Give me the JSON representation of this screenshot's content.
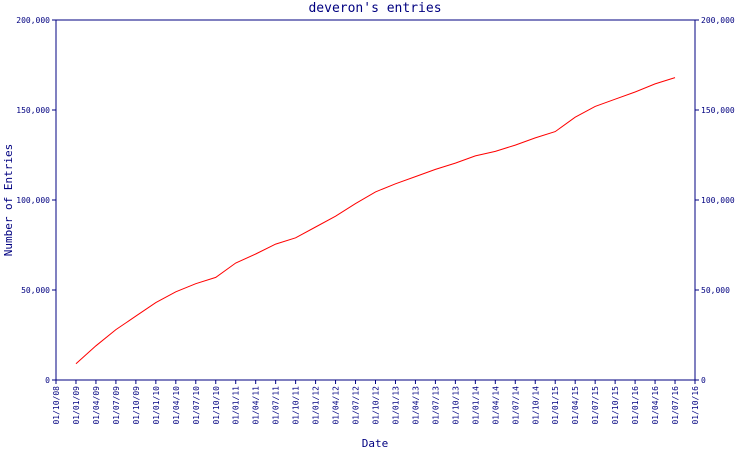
{
  "chart_data": {
    "type": "line",
    "title": "deveron's entries",
    "x_label": "Date",
    "y_label": "Number of Entries",
    "x": [
      "01/10/08",
      "01/01/09",
      "01/04/09",
      "01/07/09",
      "01/10/09",
      "01/01/10",
      "01/04/10",
      "01/07/10",
      "01/10/10",
      "01/01/11",
      "01/04/11",
      "01/07/11",
      "01/10/11",
      "01/01/12",
      "01/04/12",
      "01/07/12",
      "01/10/12",
      "01/01/13",
      "01/04/13",
      "01/07/13",
      "01/10/13",
      "01/01/14",
      "01/04/14",
      "01/07/14",
      "01/10/14",
      "01/01/15",
      "01/04/15",
      "01/07/15",
      "01/10/15",
      "01/01/16",
      "01/04/16",
      "01/07/16",
      "01/10/16"
    ],
    "series": [
      {
        "name": "Entries",
        "color": "#ff0000",
        "values": [
          null,
          9000,
          19000,
          28000,
          35500,
          43000,
          49000,
          53500,
          57000,
          65000,
          70000,
          75500,
          79000,
          85000,
          91000,
          98000,
          104500,
          109000,
          113000,
          117000,
          120500,
          124500,
          127000,
          130500,
          134500,
          138000,
          146000,
          152000,
          156000,
          160000,
          164500,
          168000,
          null
        ]
      }
    ],
    "ylim": [
      0,
      200000
    ],
    "yticks": [
      0,
      {
        "value": 50000,
        "label": "50,000"
      },
      {
        "value": 100000,
        "label": "100,000"
      },
      {
        "value": 150000,
        "label": "150,000"
      },
      {
        "value": 200000,
        "label": "200,000"
      }
    ],
    "axis_color": "#000080"
  }
}
